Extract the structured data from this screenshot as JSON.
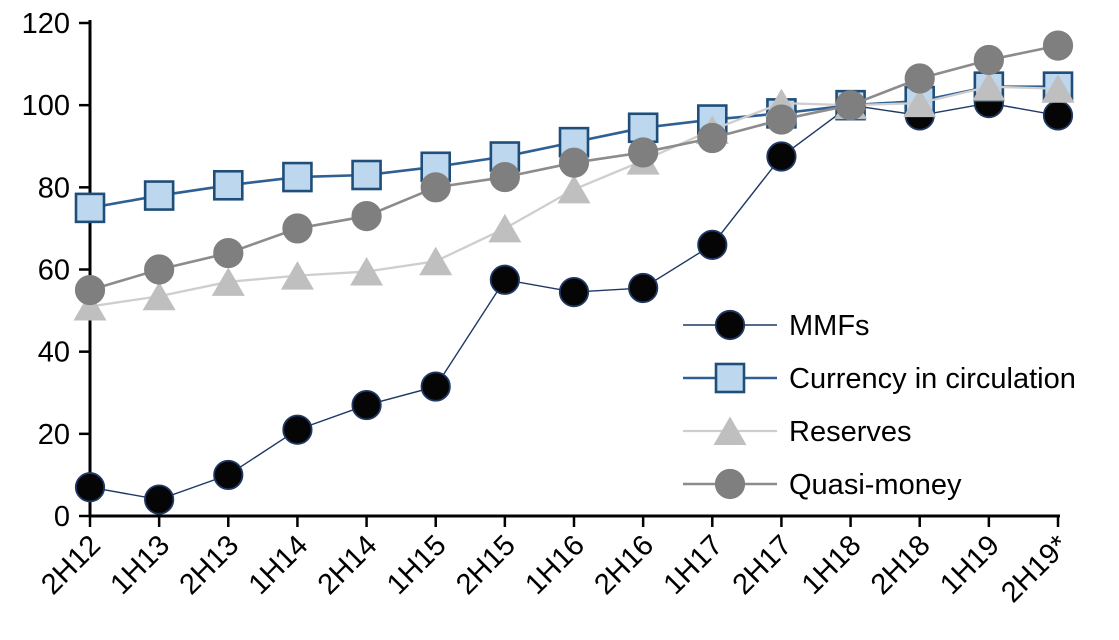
{
  "chart_data": {
    "type": "line",
    "title": "",
    "xlabel": "",
    "ylabel": "",
    "categories": [
      "2H12",
      "1H13",
      "2H13",
      "1H14",
      "2H14",
      "1H15",
      "2H15",
      "1H16",
      "2H16",
      "1H17",
      "2H17",
      "1H18",
      "2H18",
      "1H19",
      "2H19*"
    ],
    "series": [
      {
        "name": "MMFs",
        "marker": "circle",
        "marker_fill": "#050505",
        "marker_stroke": "#1f3864",
        "line_color": "#1f3864",
        "line_width": 1.4,
        "values": [
          7,
          4,
          10,
          21,
          27,
          31.5,
          57.5,
          54.5,
          55.5,
          66,
          87.5,
          100,
          97.5,
          100.5,
          97.5
        ]
      },
      {
        "name": "Currency in circulation",
        "marker": "square",
        "marker_fill": "#bdd7ee",
        "marker_stroke": "#1f4e79",
        "line_color": "#2e6093",
        "line_width": 2.6,
        "values": [
          75,
          78,
          80.5,
          82.5,
          83,
          85,
          87.5,
          91,
          94.5,
          96.5,
          98,
          100,
          101,
          104.5,
          104.5
        ]
      },
      {
        "name": "Reserves",
        "marker": "triangle",
        "marker_fill": "#bfbfbf",
        "marker_stroke": "#bfbfbf",
        "line_color": "#cfcecd",
        "line_width": 2.3,
        "values": [
          51,
          53.5,
          57,
          58.5,
          59.5,
          62,
          70,
          79.5,
          86.5,
          94,
          100.5,
          100,
          100.5,
          104.5,
          104
        ]
      },
      {
        "name": "Quasi-money",
        "marker": "circle",
        "marker_fill": "#7f7f7f",
        "marker_stroke": "#7f7f7f",
        "line_color": "#8c8c8c",
        "line_width": 2.6,
        "values": [
          55,
          60,
          64,
          70,
          73,
          80,
          82.5,
          86,
          88.5,
          92,
          96.5,
          100,
          106.5,
          111,
          114.5
        ]
      }
    ],
    "ylim": [
      0,
      120
    ],
    "yticks": [
      0,
      20,
      40,
      60,
      80,
      100,
      120
    ],
    "grid": false,
    "axis_color": "#000000",
    "legend_position": "inside-right"
  }
}
